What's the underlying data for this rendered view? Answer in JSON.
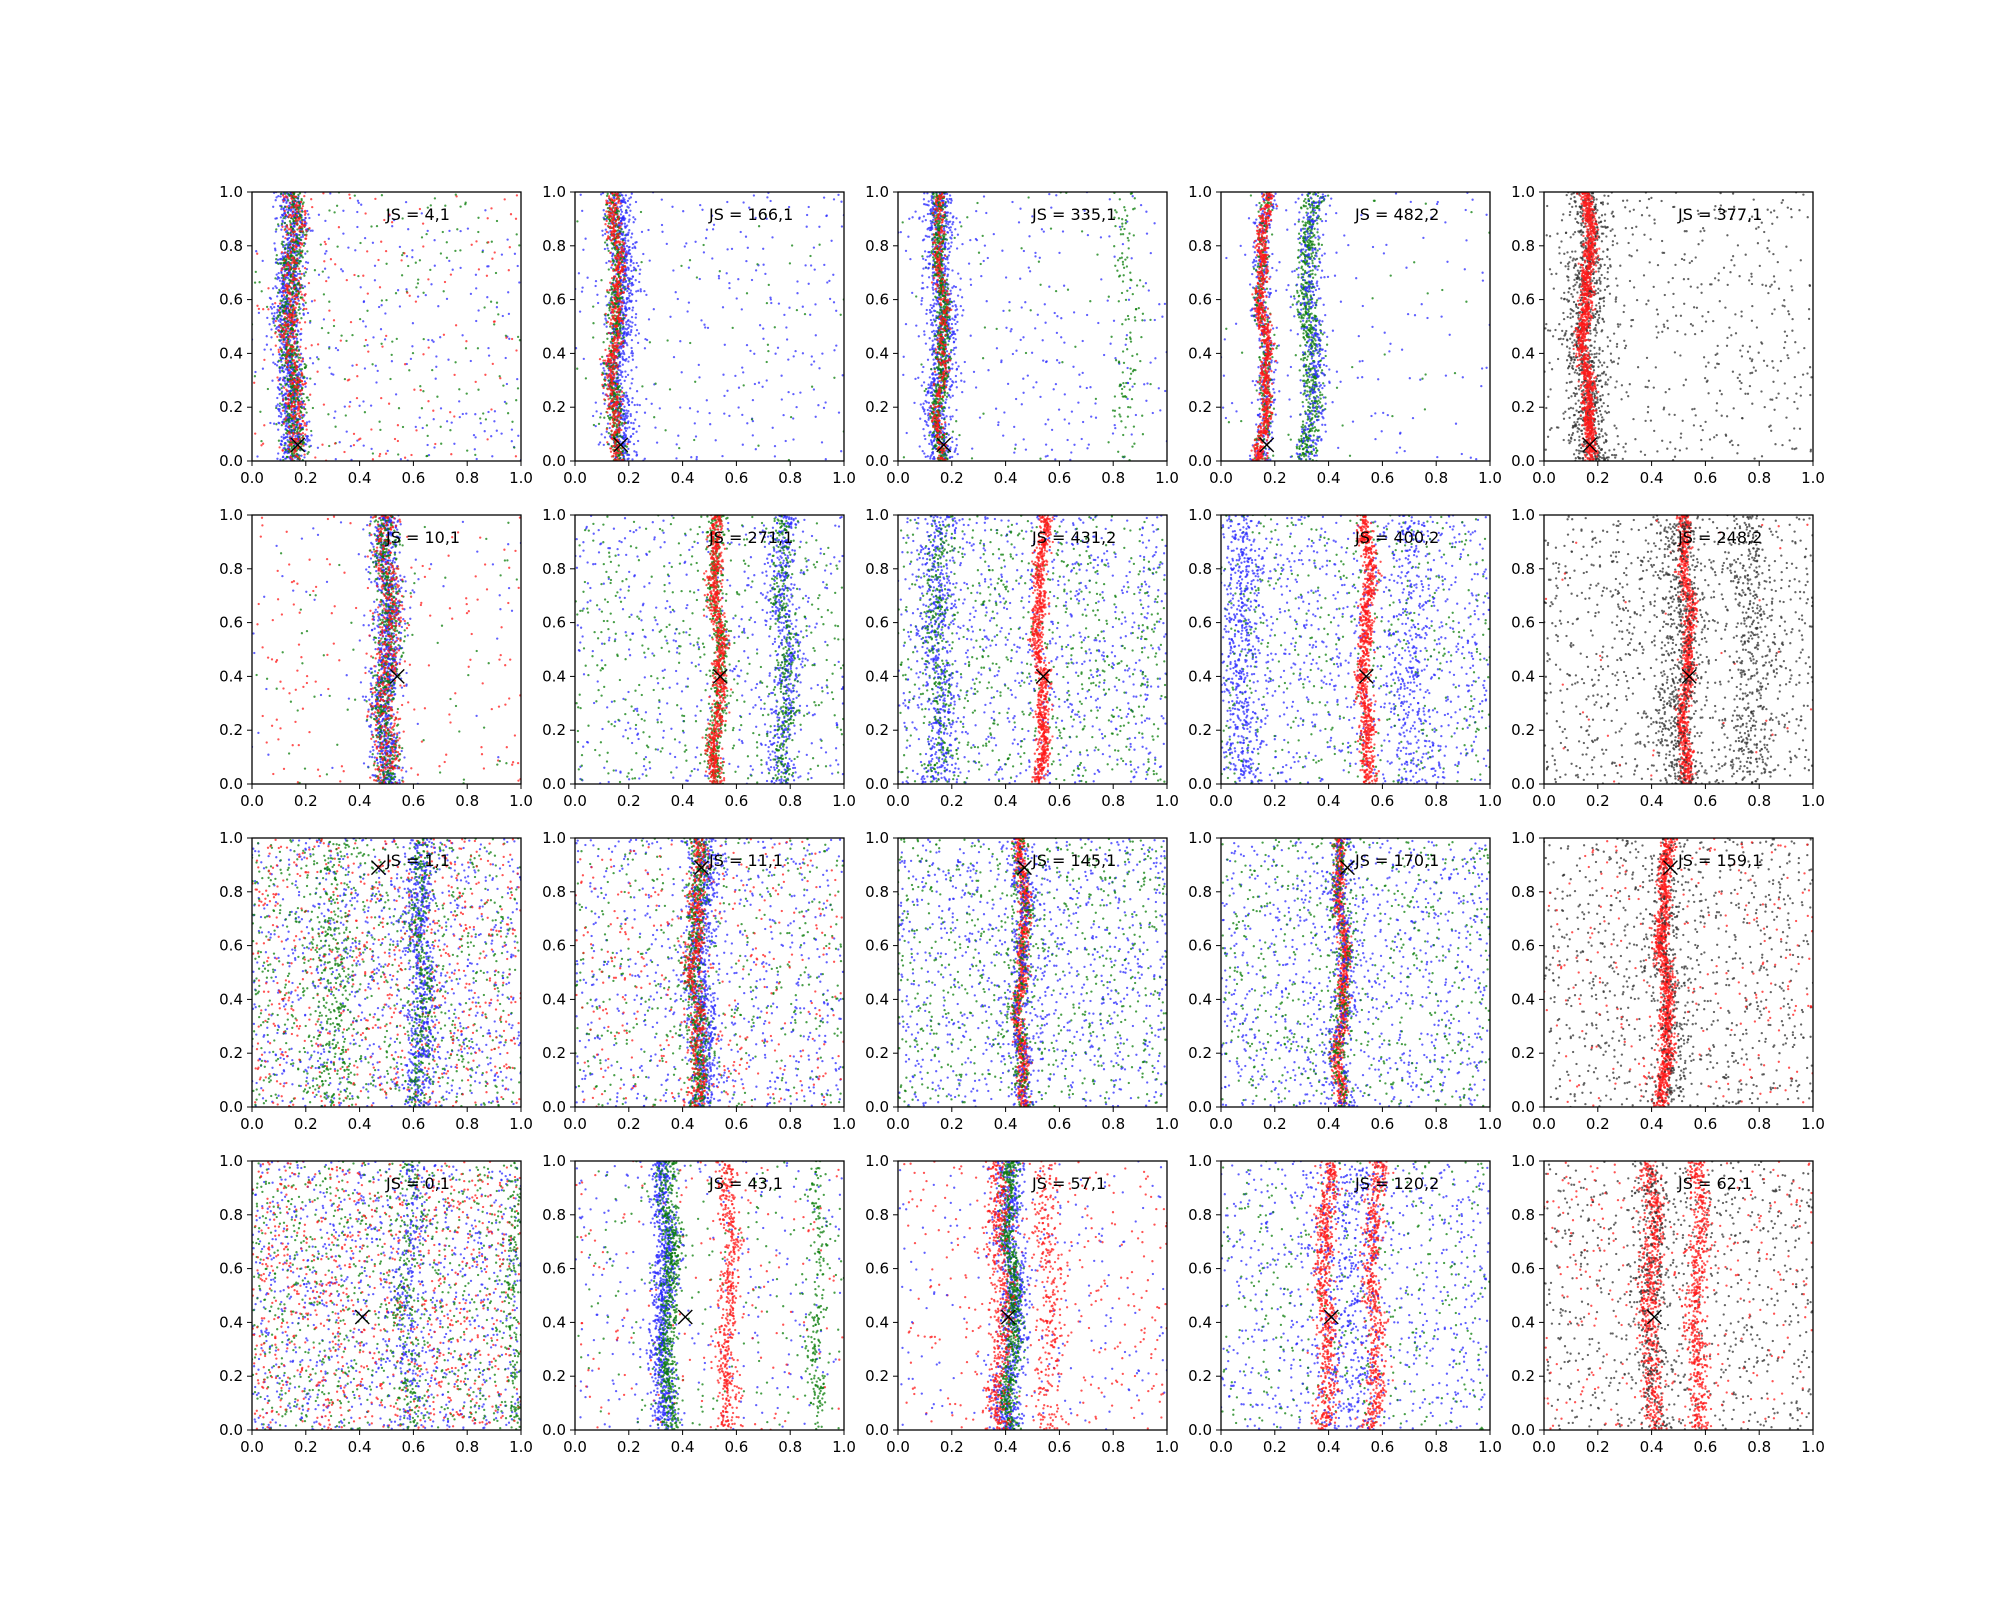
{
  "colors": {
    "blue": "#2b2bff",
    "green": "#0a7d0a",
    "red": "#ff1a1a",
    "black": "#303030",
    "marker": "#000000"
  },
  "chart_data": {
    "type": "scatter",
    "layout": "grid-4x5",
    "xlim": [
      0,
      1
    ],
    "ylim": [
      0,
      1
    ],
    "x_ticks": [
      "0.0",
      "0.2",
      "0.4",
      "0.6",
      "0.8",
      "1.0"
    ],
    "y_ticks": [
      "0.0",
      "0.2",
      "0.4",
      "0.6",
      "0.8",
      "1.0"
    ],
    "grid": false,
    "legend": "none",
    "panels": [
      {
        "label": "JS = 4,1",
        "marker": [
          0.17,
          0.06
        ],
        "clusters": [
          {
            "color": "blue",
            "center": 0.14,
            "width": 0.05,
            "n": 1100
          },
          {
            "color": "green",
            "center": 0.15,
            "width": 0.04,
            "n": 700
          },
          {
            "color": "red",
            "center": 0.15,
            "width": 0.04,
            "n": 500
          }
        ],
        "background": [
          {
            "color": "blue",
            "n": 200
          },
          {
            "color": "green",
            "n": 160
          },
          {
            "color": "red",
            "n": 150
          }
        ]
      },
      {
        "label": "JS = 166,1",
        "marker": [
          0.17,
          0.06
        ],
        "clusters": [
          {
            "color": "blue",
            "center": 0.17,
            "width": 0.05,
            "n": 900
          },
          {
            "color": "green",
            "center": 0.15,
            "width": 0.025,
            "n": 600
          },
          {
            "color": "red",
            "center": 0.15,
            "width": 0.025,
            "n": 600
          }
        ],
        "background": [
          {
            "color": "blue",
            "n": 260
          },
          {
            "color": "green",
            "n": 60
          }
        ]
      },
      {
        "label": "JS = 335,1",
        "marker": [
          0.17,
          0.06
        ],
        "clusters": [
          {
            "color": "blue",
            "center": 0.16,
            "width": 0.05,
            "n": 900
          },
          {
            "color": "green",
            "center": 0.16,
            "width": 0.025,
            "n": 700
          },
          {
            "color": "red",
            "center": 0.16,
            "width": 0.02,
            "n": 400
          },
          {
            "color": "green",
            "center": 0.85,
            "width": 0.04,
            "n": 120
          }
        ],
        "background": [
          {
            "color": "blue",
            "n": 260
          },
          {
            "color": "green",
            "n": 60
          }
        ]
      },
      {
        "label": "JS = 482,2",
        "marker": [
          0.17,
          0.06
        ],
        "clusters": [
          {
            "color": "blue",
            "center": 0.16,
            "width": 0.035,
            "n": 400
          },
          {
            "color": "green",
            "center": 0.16,
            "width": 0.025,
            "n": 300
          },
          {
            "color": "red",
            "center": 0.16,
            "width": 0.02,
            "n": 800
          },
          {
            "color": "green",
            "center": 0.33,
            "width": 0.035,
            "n": 700
          },
          {
            "color": "blue",
            "center": 0.34,
            "width": 0.05,
            "n": 400
          }
        ],
        "background": [
          {
            "color": "blue",
            "n": 120
          },
          {
            "color": "green",
            "n": 40
          }
        ]
      },
      {
        "label": "JS = 377,1",
        "marker": [
          0.17,
          0.06
        ],
        "clusters": [
          {
            "color": "black",
            "center": 0.16,
            "width": 0.07,
            "n": 1000
          },
          {
            "color": "red",
            "center": 0.16,
            "width": 0.022,
            "n": 1200
          }
        ],
        "background": [
          {
            "color": "black",
            "n": 500
          }
        ]
      },
      {
        "label": "JS = 10,1",
        "marker": [
          0.54,
          0.4
        ],
        "clusters": [
          {
            "color": "blue",
            "center": 0.5,
            "width": 0.05,
            "n": 1000
          },
          {
            "color": "green",
            "center": 0.5,
            "width": 0.045,
            "n": 600
          },
          {
            "color": "red",
            "center": 0.5,
            "width": 0.05,
            "n": 500
          }
        ],
        "background": [
          {
            "color": "red",
            "n": 150
          },
          {
            "color": "green",
            "n": 60
          },
          {
            "color": "blue",
            "n": 50
          }
        ]
      },
      {
        "label": "JS = 271,1",
        "marker": [
          0.54,
          0.4
        ],
        "clusters": [
          {
            "color": "green",
            "center": 0.53,
            "width": 0.03,
            "n": 500
          },
          {
            "color": "red",
            "center": 0.53,
            "width": 0.025,
            "n": 800
          },
          {
            "color": "blue",
            "center": 0.78,
            "width": 0.05,
            "n": 500
          },
          {
            "color": "green",
            "center": 0.78,
            "width": 0.04,
            "n": 300
          }
        ],
        "background": [
          {
            "color": "blue",
            "n": 450
          },
          {
            "color": "green",
            "n": 450
          }
        ]
      },
      {
        "label": "JS = 431,2",
        "marker": [
          0.54,
          0.4
        ],
        "clusters": [
          {
            "color": "red",
            "center": 0.53,
            "width": 0.022,
            "n": 900
          },
          {
            "color": "blue",
            "center": 0.15,
            "width": 0.06,
            "n": 500
          },
          {
            "color": "green",
            "center": 0.15,
            "width": 0.05,
            "n": 250
          }
        ],
        "background": [
          {
            "color": "blue",
            "n": 800
          },
          {
            "color": "green",
            "n": 700
          }
        ]
      },
      {
        "label": "JS = 400,2",
        "marker": [
          0.54,
          0.4
        ],
        "clusters": [
          {
            "color": "red",
            "center": 0.54,
            "width": 0.025,
            "n": 900
          },
          {
            "color": "blue",
            "center": 0.08,
            "width": 0.07,
            "n": 500
          },
          {
            "color": "blue",
            "center": 0.7,
            "width": 0.08,
            "n": 300
          }
        ],
        "background": [
          {
            "color": "blue",
            "n": 900
          },
          {
            "color": "green",
            "n": 500
          }
        ]
      },
      {
        "label": "JS = 248,2",
        "marker": [
          0.54,
          0.4
        ],
        "clusters": [
          {
            "color": "red",
            "center": 0.53,
            "width": 0.022,
            "n": 1000
          },
          {
            "color": "black",
            "center": 0.5,
            "width": 0.08,
            "n": 600
          },
          {
            "color": "black",
            "center": 0.77,
            "width": 0.08,
            "n": 400
          }
        ],
        "background": [
          {
            "color": "black",
            "n": 900
          },
          {
            "color": "red",
            "n": 40
          }
        ]
      },
      {
        "label": "JS = 1,1",
        "marker": [
          0.47,
          0.89
        ],
        "clusters": [
          {
            "color": "blue",
            "center": 0.63,
            "width": 0.05,
            "n": 600
          },
          {
            "color": "green",
            "center": 0.63,
            "width": 0.04,
            "n": 300
          },
          {
            "color": "green",
            "center": 0.3,
            "width": 0.08,
            "n": 300
          }
        ],
        "background": [
          {
            "color": "blue",
            "n": 900
          },
          {
            "color": "green",
            "n": 800
          },
          {
            "color": "red",
            "n": 700
          }
        ]
      },
      {
        "label": "JS = 11,1",
        "marker": [
          0.47,
          0.89
        ],
        "clusters": [
          {
            "color": "blue",
            "center": 0.47,
            "width": 0.05,
            "n": 800
          },
          {
            "color": "green",
            "center": 0.45,
            "width": 0.035,
            "n": 600
          },
          {
            "color": "red",
            "center": 0.45,
            "width": 0.03,
            "n": 500
          }
        ],
        "background": [
          {
            "color": "blue",
            "n": 650
          },
          {
            "color": "green",
            "n": 450
          },
          {
            "color": "red",
            "n": 350
          }
        ]
      },
      {
        "label": "JS = 145,1",
        "marker": [
          0.47,
          0.89
        ],
        "clusters": [
          {
            "color": "red",
            "center": 0.46,
            "width": 0.02,
            "n": 900
          },
          {
            "color": "green",
            "center": 0.46,
            "width": 0.035,
            "n": 300
          },
          {
            "color": "blue",
            "center": 0.46,
            "width": 0.05,
            "n": 300
          }
        ],
        "background": [
          {
            "color": "blue",
            "n": 900
          },
          {
            "color": "green",
            "n": 700
          }
        ]
      },
      {
        "label": "JS = 170,1",
        "marker": [
          0.47,
          0.89
        ],
        "clusters": [
          {
            "color": "red",
            "center": 0.45,
            "width": 0.02,
            "n": 900
          },
          {
            "color": "green",
            "center": 0.45,
            "width": 0.035,
            "n": 300
          },
          {
            "color": "blue",
            "center": 0.45,
            "width": 0.05,
            "n": 300
          }
        ],
        "background": [
          {
            "color": "blue",
            "n": 900
          },
          {
            "color": "green",
            "n": 600
          }
        ]
      },
      {
        "label": "JS = 159,1",
        "marker": [
          0.47,
          0.89
        ],
        "clusters": [
          {
            "color": "red",
            "center": 0.45,
            "width": 0.025,
            "n": 1200
          },
          {
            "color": "black",
            "center": 0.47,
            "width": 0.08,
            "n": 300
          }
        ],
        "background": [
          {
            "color": "black",
            "n": 900
          },
          {
            "color": "red",
            "n": 250
          }
        ]
      },
      {
        "label": "JS = 0,1",
        "marker": [
          0.41,
          0.42
        ],
        "clusters": [
          {
            "color": "green",
            "center": 0.58,
            "width": 0.05,
            "n": 200
          },
          {
            "color": "blue",
            "center": 0.58,
            "width": 0.06,
            "n": 200
          },
          {
            "color": "green",
            "center": 0.97,
            "width": 0.025,
            "n": 150
          }
        ],
        "background": [
          {
            "color": "blue",
            "n": 1000
          },
          {
            "color": "green",
            "n": 900
          },
          {
            "color": "red",
            "n": 900
          }
        ]
      },
      {
        "label": "JS = 43,1",
        "marker": [
          0.41,
          0.42
        ],
        "clusters": [
          {
            "color": "blue",
            "center": 0.33,
            "width": 0.04,
            "n": 900
          },
          {
            "color": "green",
            "center": 0.35,
            "width": 0.035,
            "n": 600
          },
          {
            "color": "red",
            "center": 0.57,
            "width": 0.035,
            "n": 500
          },
          {
            "color": "green",
            "center": 0.9,
            "width": 0.03,
            "n": 200
          }
        ],
        "background": [
          {
            "color": "blue",
            "n": 250
          },
          {
            "color": "green",
            "n": 200
          },
          {
            "color": "red",
            "n": 150
          }
        ]
      },
      {
        "label": "JS = 57,1",
        "marker": [
          0.41,
          0.42
        ],
        "clusters": [
          {
            "color": "blue",
            "center": 0.42,
            "width": 0.05,
            "n": 900
          },
          {
            "color": "green",
            "center": 0.42,
            "width": 0.03,
            "n": 700
          },
          {
            "color": "red",
            "center": 0.38,
            "width": 0.04,
            "n": 500
          },
          {
            "color": "red",
            "center": 0.56,
            "width": 0.05,
            "n": 300
          }
        ],
        "background": [
          {
            "color": "red",
            "n": 300
          },
          {
            "color": "blue",
            "n": 200
          }
        ]
      },
      {
        "label": "JS = 120,2",
        "marker": [
          0.41,
          0.42
        ],
        "clusters": [
          {
            "color": "red",
            "center": 0.39,
            "width": 0.035,
            "n": 700
          },
          {
            "color": "red",
            "center": 0.57,
            "width": 0.035,
            "n": 600
          },
          {
            "color": "blue",
            "center": 0.48,
            "width": 0.12,
            "n": 400
          }
        ],
        "background": [
          {
            "color": "blue",
            "n": 700
          },
          {
            "color": "green",
            "n": 400
          }
        ]
      },
      {
        "label": "JS = 62,1",
        "marker": [
          0.41,
          0.42
        ],
        "clusters": [
          {
            "color": "red",
            "center": 0.4,
            "width": 0.035,
            "n": 700
          },
          {
            "color": "red",
            "center": 0.57,
            "width": 0.035,
            "n": 600
          },
          {
            "color": "black",
            "center": 0.4,
            "width": 0.07,
            "n": 300
          }
        ],
        "background": [
          {
            "color": "black",
            "n": 800
          },
          {
            "color": "red",
            "n": 300
          }
        ]
      }
    ]
  }
}
